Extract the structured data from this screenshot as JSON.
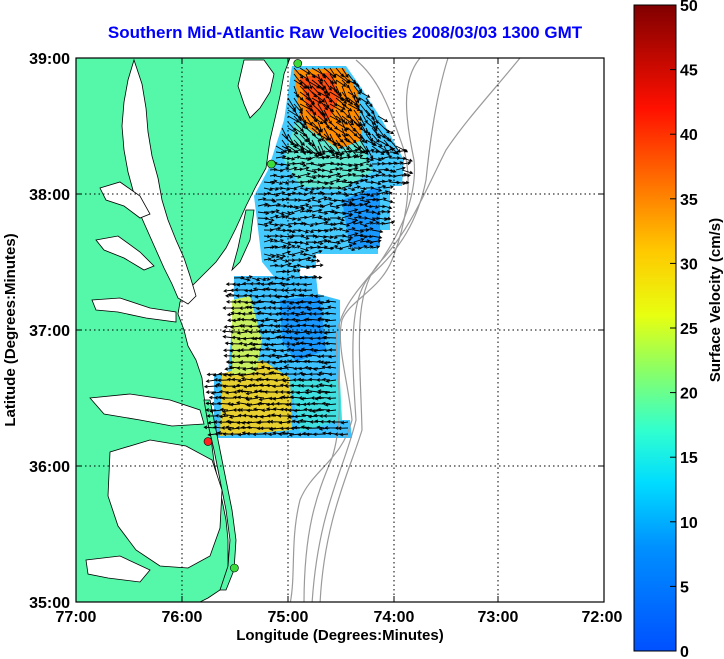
{
  "title": "Southern Mid-Atlantic Raw Velocities 2008/03/03 1300 GMT",
  "xlabel": "Longitude (Degrees:Minutes)",
  "ylabel": "Latitude (Degrees:Minutes)",
  "colorbar_label": "Surface Velocity (cm/s)",
  "x_ticks": [
    "77:00",
    "76:00",
    "75:00",
    "74:00",
    "73:00",
    "72:00"
  ],
  "y_ticks": [
    "39:00",
    "38:00",
    "37:00",
    "36:00",
    "35:00"
  ],
  "colorbar_ticks": [
    "0",
    "5",
    "10",
    "15",
    "20",
    "25",
    "30",
    "35",
    "40",
    "45",
    "50"
  ],
  "colors": {
    "land": "#55f7a8",
    "title": "#0000ff",
    "bathymetry": "#9a9a9a",
    "station_active": "#3cdc3c",
    "station_inactive": "#ff2020"
  },
  "map_extent": {
    "lon": [
      -77,
      -72
    ],
    "lat": [
      35,
      39
    ]
  },
  "colorbar_range": [
    0,
    50
  ],
  "stations": [
    {
      "lon": -74.9,
      "lat": 38.96,
      "status": "active"
    },
    {
      "lon": -75.15,
      "lat": 38.22,
      "status": "active"
    },
    {
      "lon": -75.75,
      "lat": 36.18,
      "status": "inactive"
    },
    {
      "lon": -75.5,
      "lat": 35.25,
      "status": "active"
    }
  ]
}
